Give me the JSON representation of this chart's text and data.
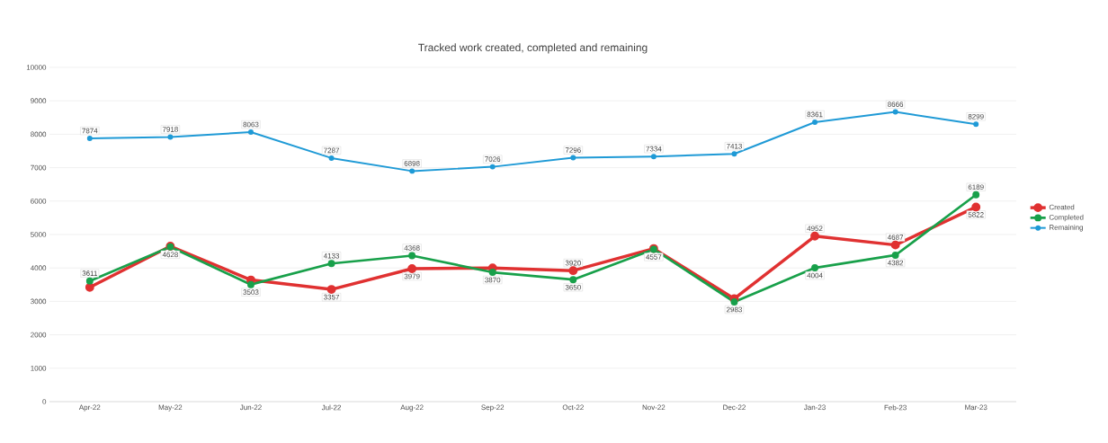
{
  "chart_data": {
    "type": "line",
    "title": "Tracked work created, completed and remaining",
    "categories": [
      "Apr-22",
      "May-22",
      "Jun-22",
      "Jul-22",
      "Aug-22",
      "Sep-22",
      "Oct-22",
      "Nov-22",
      "Dec-22",
      "Jan-23",
      "Feb-23",
      "Mar-23"
    ],
    "series": [
      {
        "name": "Created",
        "color": "#e03131",
        "values": [
          3420,
          4650,
          3640,
          3357,
          3979,
          4000,
          3920,
          4580,
          3080,
          4952,
          4687,
          5822
        ],
        "value_labels": [
          null,
          null,
          null,
          "3357",
          "3979",
          null,
          "3920",
          null,
          null,
          "4952",
          "4687",
          "5822"
        ]
      },
      {
        "name": "Completed",
        "color": "#18a04a",
        "values": [
          3611,
          4628,
          3503,
          4133,
          4368,
          3870,
          3650,
          4557,
          2983,
          4004,
          4382,
          6189
        ],
        "value_labels": [
          "3611",
          "4628",
          "3503",
          "4133",
          "4368",
          "3870",
          "3650",
          "4557",
          "2983",
          "4004",
          "4382",
          "6189"
        ]
      },
      {
        "name": "Remaining",
        "color": "#1f9ad6",
        "values": [
          7874,
          7918,
          8063,
          7287,
          6898,
          7026,
          7296,
          7334,
          7413,
          8361,
          8666,
          8299
        ],
        "value_labels": [
          "7874",
          "7918",
          "8063",
          "7287",
          "6898",
          "7026",
          "7296",
          "7334",
          "7413",
          "8361",
          "8666",
          "8299"
        ]
      }
    ],
    "ylim": [
      0,
      10000
    ],
    "yticks": [
      0,
      1000,
      2000,
      3000,
      4000,
      5000,
      6000,
      7000,
      8000,
      9000,
      10000
    ],
    "grid": "y",
    "legend": "right",
    "marker": "circle",
    "line_style": "solid"
  }
}
